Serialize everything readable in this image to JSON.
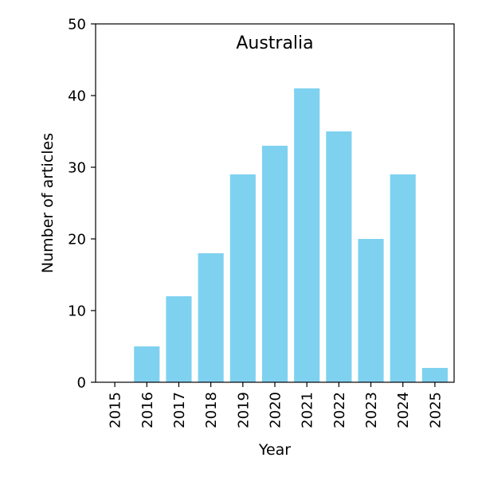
{
  "chart_data": {
    "type": "bar",
    "title": "Australia",
    "xlabel": "Year",
    "ylabel": "Number of articles",
    "categories": [
      "2015",
      "2016",
      "2017",
      "2018",
      "2019",
      "2020",
      "2021",
      "2022",
      "2023",
      "2024",
      "2025"
    ],
    "values": [
      0,
      5,
      12,
      18,
      29,
      33,
      41,
      35,
      20,
      29,
      2
    ],
    "ylim": [
      0,
      50
    ],
    "yticks": [
      0,
      10,
      20,
      30,
      40,
      50
    ],
    "grid": false,
    "bar_color": "#7fd1f0",
    "title_placement": "inside-top-center"
  }
}
